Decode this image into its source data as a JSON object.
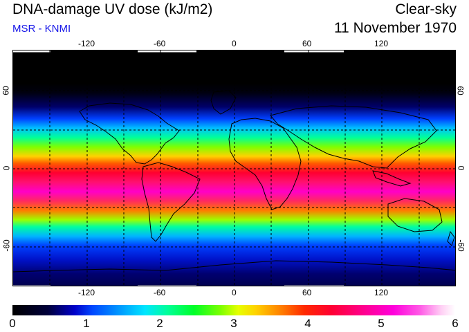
{
  "header": {
    "title": "DNA-damage UV dose (kJ/m2)",
    "subtitle": "MSR - KNMI",
    "mode": "Clear-sky",
    "date": "11 November 1970"
  },
  "map": {
    "lon_ticks": [
      "-120",
      "-60",
      "0",
      "60",
      "120"
    ],
    "lat_ticks": [
      "60",
      "0",
      "-60"
    ],
    "gridlines": true,
    "projection": "equirectangular"
  },
  "colorbar": {
    "labels": [
      "0",
      "1",
      "2",
      "3",
      "4",
      "5",
      "6"
    ],
    "min": 0,
    "max": 6
  }
}
